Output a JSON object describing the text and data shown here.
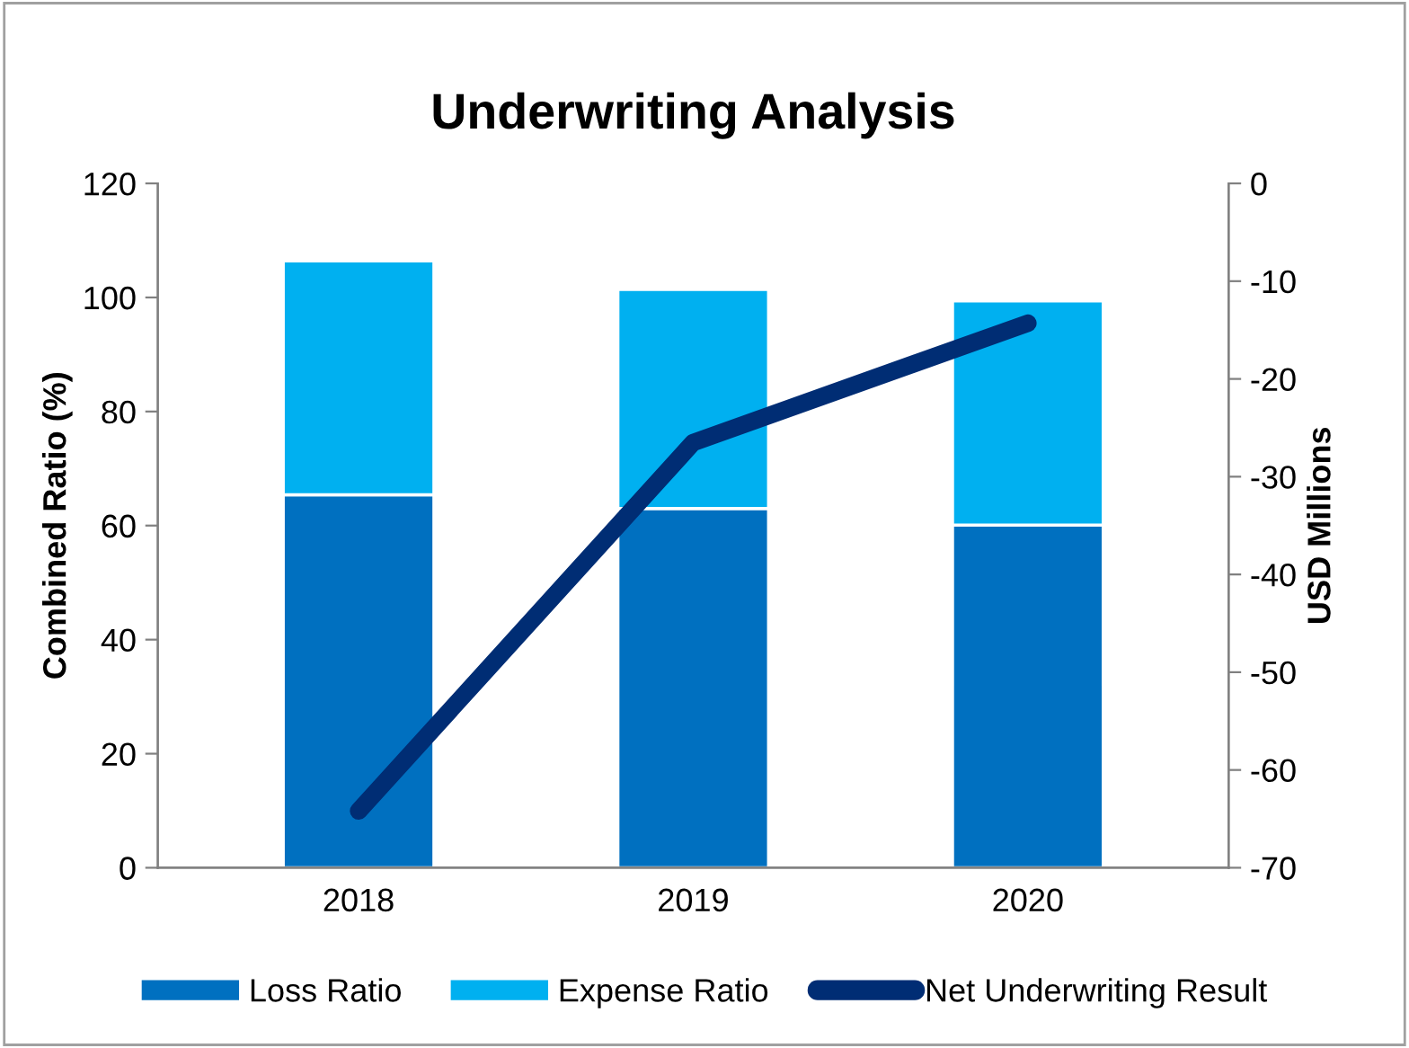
{
  "chart_data": {
    "type": "bar",
    "title": "Underwriting Analysis",
    "ylabel": "Combined Ratio (%)",
    "y2label": "USD Millions",
    "categories": [
      "2018",
      "2019",
      "2020"
    ],
    "stacked": true,
    "series": [
      {
        "name": "Loss Ratio",
        "color": "#0070c0",
        "values": [
          65.4,
          63.0,
          60.1
        ]
      },
      {
        "name": "Expense Ratio",
        "color": "#00b0f0",
        "values": [
          41.0,
          38.4,
          39.3
        ]
      },
      {
        "name": "Net Underwriting Result",
        "type": "line",
        "axis": "y2",
        "color": "#002d74",
        "values": [
          -64.2,
          -26.5,
          -14.3
        ]
      }
    ],
    "ylim": [
      0,
      120
    ],
    "yticks": [
      0,
      20,
      40,
      60,
      80,
      100,
      120
    ],
    "y2lim": [
      -70,
      0
    ],
    "y2ticks": [
      -70,
      -60,
      -50,
      -40,
      -30,
      -20,
      -10,
      0
    ],
    "grid": false,
    "legend": "bottom"
  }
}
